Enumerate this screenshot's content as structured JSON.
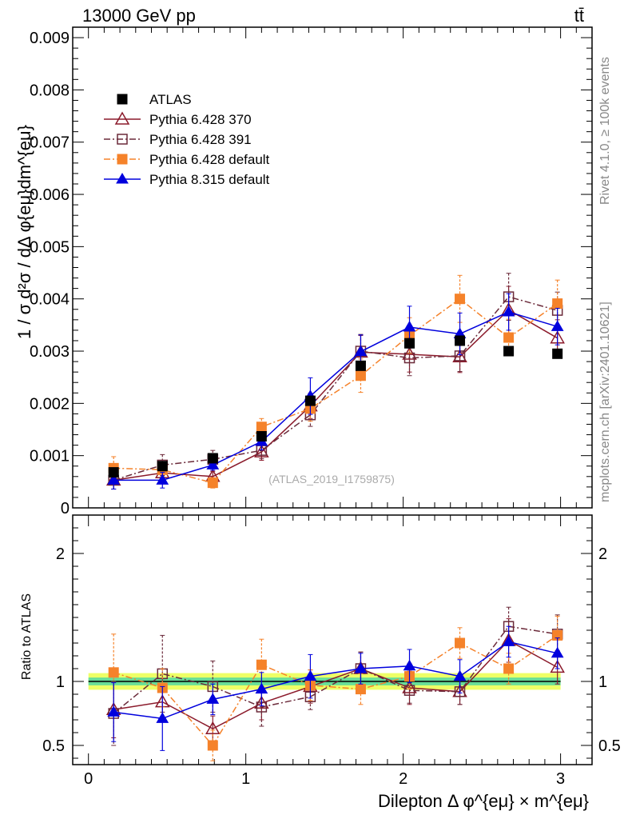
{
  "header": {
    "energy_label": "13000 GeV pp",
    "process_label": "tt̄"
  },
  "side_text": {
    "rivet": "Rivet 4.1.0, ≥ 100k events",
    "mcplots": "mcplots.cern.ch [arXiv:2401.10621]"
  },
  "watermark": "(ATLAS_2019_I1759875)",
  "chart_data": [
    {
      "type": "scatter",
      "panel": "main",
      "ylabel": "1 / σ d²σ / dΔ φ{eμ}dm^{eμ}",
      "xlabel": "",
      "xlim": [
        -0.1,
        3.2
      ],
      "ylim": [
        0,
        0.0092
      ],
      "y_ticks": [
        0,
        0.001,
        0.002,
        0.003,
        0.004,
        0.005,
        0.006,
        0.007,
        0.008,
        0.009
      ],
      "y_tick_labels": [
        "0",
        "0.001",
        "0.002",
        "0.003",
        "0.004",
        "0.005",
        "0.006",
        "0.007",
        "0.008",
        "0.009"
      ],
      "x": [
        0.16,
        0.47,
        0.79,
        1.1,
        1.41,
        1.73,
        2.04,
        2.36,
        2.67,
        2.98
      ],
      "series": [
        {
          "name": "ATLAS",
          "color": "#000000",
          "marker": "square",
          "line": "none",
          "values": [
            0.00068,
            0.0008,
            0.00095,
            0.00137,
            0.00205,
            0.00272,
            0.00315,
            0.0032,
            0.003,
            0.00295
          ],
          "errors": [
            5e-05,
            4e-05,
            4e-05,
            6e-05,
            7e-05,
            8e-05,
            9e-05,
            9e-05,
            6e-05,
            6e-05
          ]
        },
        {
          "name": "Pythia 6.428 370",
          "color": "#8b1a2b",
          "marker": "triangle-open",
          "line": "solid",
          "values": [
            0.00053,
            0.00067,
            0.0006,
            0.00107,
            0.00195,
            0.00298,
            0.00294,
            0.00289,
            0.00379,
            0.00325
          ],
          "errors": [
            0.00017,
            0.0001,
            0.0001,
            0.00016,
            0.00024,
            0.00032,
            0.00034,
            0.0003,
            0.00045,
            0.00035
          ]
        },
        {
          "name": "Pythia 6.428 391",
          "color": "#6b2a3a",
          "marker": "square-open",
          "line": "dashdot",
          "values": [
            0.00053,
            0.00082,
            0.00093,
            0.0011,
            0.00178,
            0.003,
            0.00287,
            0.00291,
            0.00404,
            0.00378
          ],
          "errors": [
            0.00017,
            0.0002,
            0.00017,
            0.00016,
            0.00022,
            0.00032,
            0.00034,
            0.0003,
            0.00045,
            0.00035
          ]
        },
        {
          "name": "Pythia 6.428 default",
          "color": "#f5822a",
          "marker": "square",
          "line": "dashdot",
          "values": [
            0.00076,
            0.00073,
            0.00048,
            0.00155,
            0.0019,
            0.00253,
            0.0033,
            0.004,
            0.00326,
            0.00391
          ],
          "errors": [
            0.00022,
            0.00013,
            0.0001,
            0.00016,
            0.00024,
            0.00032,
            0.00034,
            0.00045,
            0.00035,
            0.00045
          ]
        },
        {
          "name": "Pythia 8.315 default",
          "color": "#0000dd",
          "marker": "triangle",
          "line": "solid",
          "values": [
            0.00053,
            0.00053,
            0.00082,
            0.00127,
            0.00214,
            0.00299,
            0.00346,
            0.00333,
            0.00375,
            0.00347
          ],
          "errors": [
            0.00017,
            0.00015,
            0.0001,
            0.00016,
            0.00035,
            0.00032,
            0.0004,
            0.0004,
            0.00035,
            0.00035
          ]
        }
      ]
    },
    {
      "type": "scatter",
      "panel": "ratio",
      "ylabel": "Ratio to ATLAS",
      "xlabel": "Dilepton Δ φ^{eμ} × m^{eμ}",
      "xlim": [
        -0.1,
        3.2
      ],
      "ylim": [
        0.35,
        2.3
      ],
      "y_ticks": [
        0.5,
        1,
        2
      ],
      "y_tick_labels": [
        "0.5",
        "1",
        "2"
      ],
      "x_ticks": [
        0,
        1,
        2,
        3
      ],
      "x_tick_labels": [
        "0",
        "1",
        "2",
        "3"
      ],
      "band": {
        "inner": 0.03,
        "outer": 0.065,
        "inner_color": "#66dd99",
        "outer_color": "#eeff66"
      },
      "x": [
        0.16,
        0.47,
        0.79,
        1.1,
        1.41,
        1.73,
        2.04,
        2.36,
        2.67,
        2.98
      ],
      "series": [
        {
          "name": "Pythia 6.428 370",
          "color": "#8b1a2b",
          "marker": "triangle-open",
          "line": "solid",
          "values": [
            0.78,
            0.84,
            0.63,
            0.83,
            0.96,
            1.1,
            0.95,
            0.92,
            1.32,
            1.11
          ],
          "errors": [
            0.22,
            0.13,
            0.1,
            0.13,
            0.13,
            0.13,
            0.13,
            0.1,
            0.17,
            0.13
          ]
        },
        {
          "name": "Pythia 6.428 391",
          "color": "#6b2a3a",
          "marker": "square-open",
          "line": "dashdot",
          "values": [
            0.75,
            1.06,
            0.96,
            0.8,
            0.88,
            1.1,
            0.93,
            0.92,
            1.43,
            1.37
          ],
          "errors": [
            0.25,
            0.3,
            0.2,
            0.15,
            0.1,
            0.13,
            0.1,
            0.1,
            0.15,
            0.15
          ]
        },
        {
          "name": "Pythia 6.428 default",
          "color": "#f5822a",
          "marker": "square",
          "line": "dashdot",
          "values": [
            1.07,
            0.95,
            0.5,
            1.13,
            0.97,
            0.94,
            1.04,
            1.3,
            1.1,
            1.36
          ],
          "errors": [
            0.3,
            0.15,
            0.12,
            0.2,
            0.12,
            0.12,
            0.1,
            0.12,
            0.12,
            0.15
          ]
        },
        {
          "name": "Pythia 8.315 default",
          "color": "#0000dd",
          "marker": "triangle",
          "line": "solid",
          "values": [
            0.76,
            0.71,
            0.86,
            0.94,
            1.04,
            1.1,
            1.12,
            1.04,
            1.31,
            1.22
          ],
          "errors": [
            0.23,
            0.25,
            0.12,
            0.13,
            0.17,
            0.12,
            0.13,
            0.13,
            0.12,
            0.12
          ]
        }
      ]
    }
  ]
}
